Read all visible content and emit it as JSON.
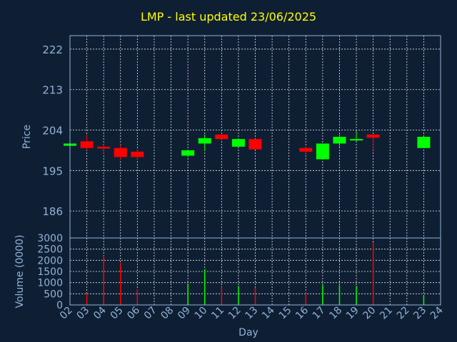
{
  "title": "LMP - last updated 23/06/2025",
  "colors": {
    "background": "#0f1f33",
    "title": "#ffff00",
    "axis_text": "#8fb3d9",
    "up": "#00ff00",
    "down": "#ff0000",
    "grid": "#ffffff"
  },
  "chart_data": [
    {
      "type": "candlestick",
      "ylabel": "Price",
      "ylim": [
        180,
        225
      ],
      "yticks": [
        186,
        195,
        204,
        213,
        222
      ],
      "grid": true,
      "x_ticks": [
        "02",
        "03",
        "04",
        "05",
        "06",
        "07",
        "08",
        "09",
        "10",
        "11",
        "12",
        "13",
        "14",
        "15",
        "16",
        "17",
        "18",
        "19",
        "20",
        "21",
        "22",
        "23",
        "24"
      ],
      "candles": [
        {
          "day": "02",
          "open": 200.5,
          "close": 201.0,
          "high": 201.0,
          "low": 200.5
        },
        {
          "day": "03",
          "open": 201.5,
          "close": 200.0,
          "high": 203.0,
          "low": 199.5
        },
        {
          "day": "04",
          "open": 200.3,
          "close": 199.9,
          "high": 200.8,
          "low": 198.8
        },
        {
          "day": "05",
          "open": 200.0,
          "close": 198.0,
          "high": 200.8,
          "low": 197.4
        },
        {
          "day": "06",
          "open": 199.2,
          "close": 198.0,
          "high": 199.7,
          "low": 197.4
        },
        {
          "day": "09",
          "open": 198.3,
          "close": 199.5,
          "high": 199.5,
          "low": 198.0
        },
        {
          "day": "10",
          "open": 201.0,
          "close": 202.2,
          "high": 203.0,
          "low": 199.3
        },
        {
          "day": "11",
          "open": 203.0,
          "close": 202.0,
          "high": 203.0,
          "low": 202.0
        },
        {
          "day": "12",
          "open": 200.3,
          "close": 202.0,
          "high": 202.2,
          "low": 200.2
        },
        {
          "day": "13",
          "open": 202.0,
          "close": 199.7,
          "high": 202.0,
          "low": 199.7
        },
        {
          "day": "16",
          "open": 200.0,
          "close": 199.2,
          "high": 200.3,
          "low": 198.3
        },
        {
          "day": "17",
          "open": 197.5,
          "close": 201.0,
          "high": 201.0,
          "low": 197.4
        },
        {
          "day": "18",
          "open": 201.0,
          "close": 202.5,
          "high": 203.0,
          "low": 200.3
        },
        {
          "day": "19",
          "open": 201.8,
          "close": 202.0,
          "high": 203.8,
          "low": 201.5
        },
        {
          "day": "20",
          "open": 203.0,
          "close": 202.3,
          "high": 203.0,
          "low": 199.5
        },
        {
          "day": "23",
          "open": 200.0,
          "close": 202.5,
          "high": 202.5,
          "low": 200.0
        }
      ]
    },
    {
      "type": "bar",
      "xlabel": "Day",
      "ylabel": "Volume (0000)",
      "ylim": [
        0,
        3000
      ],
      "yticks": [
        0,
        500,
        1000,
        1500,
        2000,
        2500,
        3000
      ],
      "grid": true,
      "categories": [
        "02",
        "03",
        "04",
        "05",
        "06",
        "09",
        "10",
        "11",
        "12",
        "13",
        "16",
        "17",
        "18",
        "19",
        "20",
        "23"
      ],
      "values": [
        20,
        520,
        2200,
        1880,
        700,
        950,
        1600,
        800,
        850,
        780,
        560,
        880,
        880,
        850,
        2800,
        420
      ],
      "bar_colors": [
        "up",
        "down",
        "down",
        "down",
        "down",
        "up",
        "up",
        "down",
        "up",
        "down",
        "down",
        "up",
        "up",
        "up",
        "down",
        "up"
      ]
    }
  ]
}
